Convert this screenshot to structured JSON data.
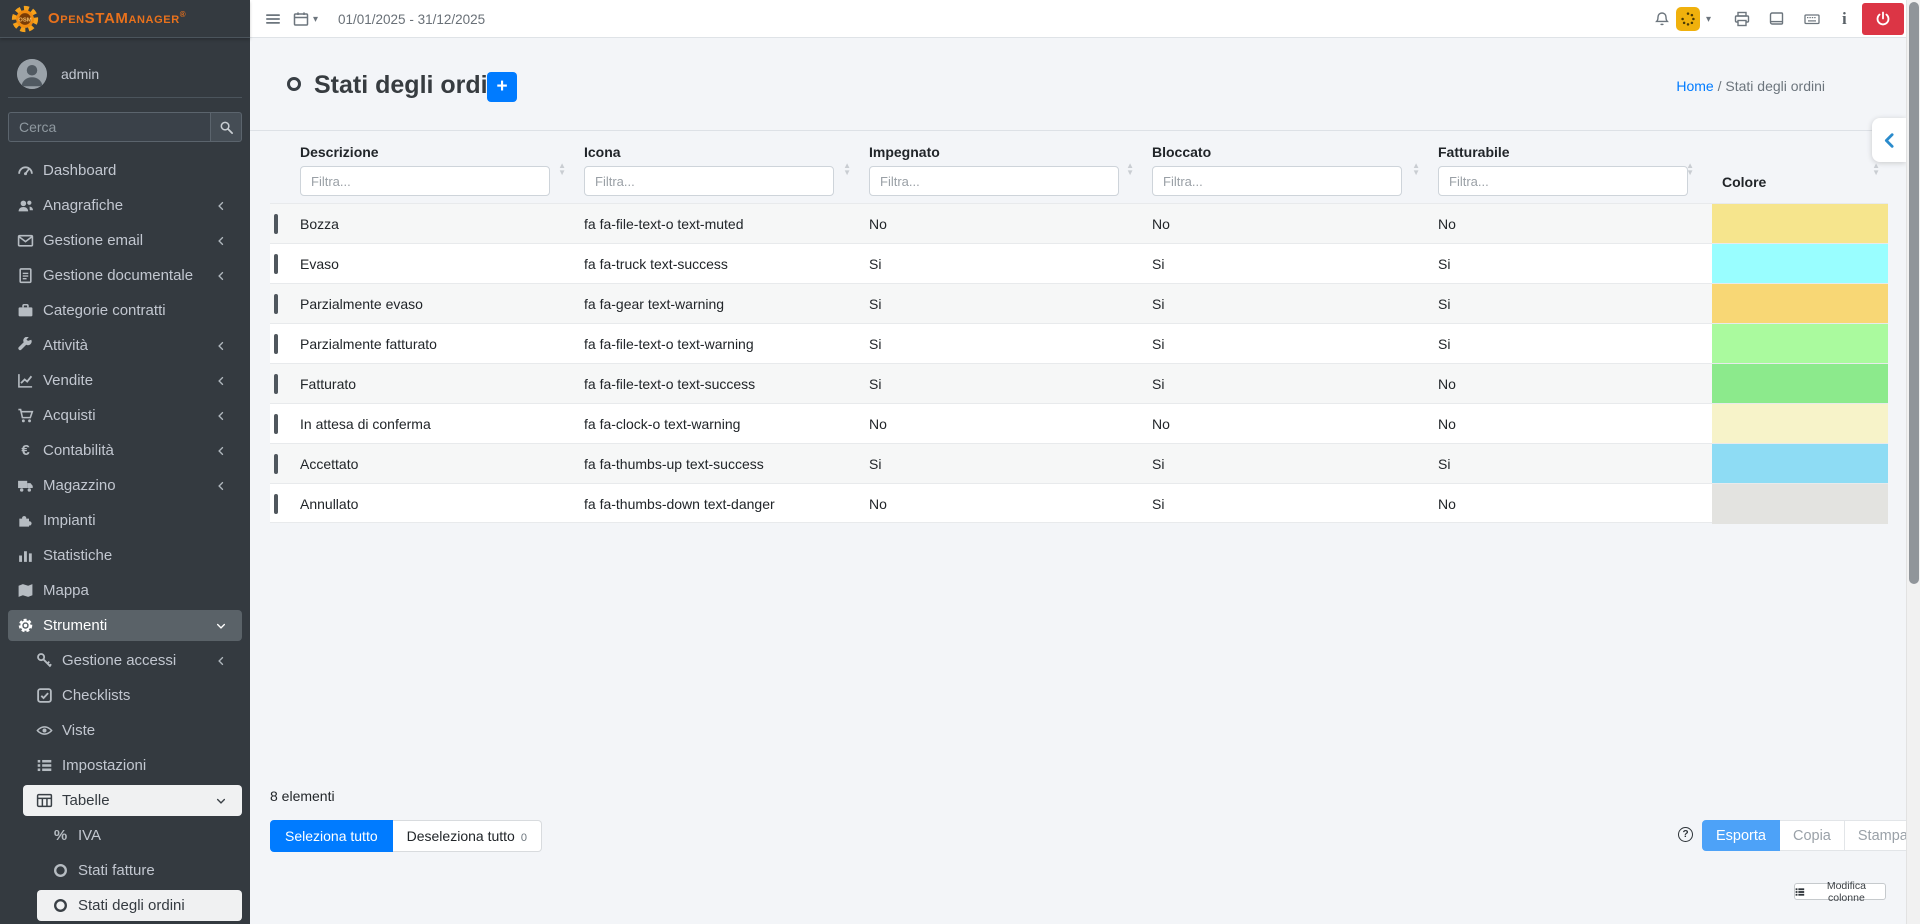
{
  "brand": {
    "name": "OpenSTAManager",
    "trademark": "®",
    "logo_icon": "osm-gear-icon"
  },
  "user": {
    "name": "admin"
  },
  "sidebar": {
    "search_placeholder": "Cerca",
    "search_icon": "magnifier",
    "items": [
      {
        "label": "Dashboard",
        "icon": "tachometer",
        "level": 0
      },
      {
        "label": "Anagrafiche",
        "icon": "users",
        "level": 0,
        "chevron": "left"
      },
      {
        "label": "Gestione email",
        "icon": "envelope",
        "level": 0,
        "chevron": "left"
      },
      {
        "label": "Gestione documentale",
        "icon": "file-text",
        "level": 0,
        "chevron": "left"
      },
      {
        "label": "Categorie contratti",
        "icon": "briefcase",
        "level": 0
      },
      {
        "label": "Attività",
        "icon": "wrench",
        "level": 0,
        "chevron": "left"
      },
      {
        "label": "Vendite",
        "icon": "chart-line",
        "level": 0,
        "chevron": "left"
      },
      {
        "label": "Acquisti",
        "icon": "cart",
        "level": 0,
        "chevron": "left"
      },
      {
        "label": "Contabilità",
        "icon": "euro",
        "level": 0,
        "chevron": "left"
      },
      {
        "label": "Magazzino",
        "icon": "truck",
        "level": 0,
        "chevron": "left"
      },
      {
        "label": "Impianti",
        "icon": "puzzle",
        "level": 0
      },
      {
        "label": "Statistiche",
        "icon": "bar-chart",
        "level": 0
      },
      {
        "label": "Mappa",
        "icon": "map",
        "level": 0
      },
      {
        "label": "Strumenti",
        "icon": "gear",
        "level": 0,
        "chevron": "down",
        "active": "gray"
      },
      {
        "label": "Gestione accessi",
        "icon": "key",
        "level": 1,
        "chevron": "left"
      },
      {
        "label": "Checklists",
        "icon": "check-square",
        "level": 1
      },
      {
        "label": "Viste",
        "icon": "eye",
        "level": 1
      },
      {
        "label": "Impostazioni",
        "icon": "list",
        "level": 1
      },
      {
        "label": "Tabelle",
        "icon": "table",
        "level": 1,
        "chevron": "down",
        "active": "light"
      },
      {
        "label": "IVA",
        "icon": "percent",
        "level": 2
      },
      {
        "label": "Stati fatture",
        "icon": "circle-o",
        "level": 2
      },
      {
        "label": "Stati degli ordini",
        "icon": "circle-o",
        "level": 2,
        "active": "light"
      }
    ]
  },
  "topbar": {
    "date_range": "01/01/2025 - 31/12/2025",
    "icons": [
      "hamburger",
      "calendar",
      "bell",
      "changelog-badge",
      "printer",
      "book",
      "keyboard",
      "info",
      "power"
    ],
    "badge_color": "#f0b10d",
    "power_color": "#dc3545"
  },
  "page": {
    "title": "Stati degli ordini",
    "title_icon": "circle-o",
    "add_button_label": "+",
    "breadcrumb": {
      "home": "Home",
      "separator": "/",
      "current": "Stati degli ordini"
    }
  },
  "table": {
    "columns": [
      {
        "label": "Descrizione",
        "filter_placeholder": "Filtra..."
      },
      {
        "label": "Icona",
        "filter_placeholder": "Filtra..."
      },
      {
        "label": "Impegnato",
        "filter_placeholder": "Filtra..."
      },
      {
        "label": "Bloccato",
        "filter_placeholder": "Filtra..."
      },
      {
        "label": "Fatturabile",
        "filter_placeholder": "Filtra..."
      },
      {
        "label": "Colore"
      }
    ],
    "rows": [
      {
        "descrizione": "Bozza",
        "icona": "fa fa-file-text-o text-muted",
        "impegnato": "No",
        "bloccato": "No",
        "fatturabile": "No",
        "colore": "#f6e58d"
      },
      {
        "descrizione": "Evaso",
        "icona": "fa fa-truck text-success",
        "impegnato": "Si",
        "bloccato": "Si",
        "fatturabile": "Si",
        "colore": "#99feff"
      },
      {
        "descrizione": "Parzialmente evaso",
        "icona": "fa fa-gear text-warning",
        "impegnato": "Si",
        "bloccato": "Si",
        "fatturabile": "Si",
        "colore": "#f8d775"
      },
      {
        "descrizione": "Parzialmente fatturato",
        "icona": "fa fa-file-text-o text-warning",
        "impegnato": "Si",
        "bloccato": "Si",
        "fatturabile": "Si",
        "colore": "#aafa9e"
      },
      {
        "descrizione": "Fatturato",
        "icona": "fa fa-file-text-o text-success",
        "impegnato": "Si",
        "bloccato": "Si",
        "fatturabile": "No",
        "colore": "#8cea8c"
      },
      {
        "descrizione": "In attesa di conferma",
        "icona": "fa fa-clock-o text-warning",
        "impegnato": "No",
        "bloccato": "No",
        "fatturabile": "No",
        "colore": "#f7f3c9"
      },
      {
        "descrizione": "Accettato",
        "icona": "fa fa-thumbs-up text-success",
        "impegnato": "Si",
        "bloccato": "Si",
        "fatturabile": "Si",
        "colore": "#8edcf4"
      },
      {
        "descrizione": "Annullato",
        "icona": "fa fa-thumbs-down text-danger",
        "impegnato": "No",
        "bloccato": "Si",
        "fatturabile": "No",
        "colore": "#e3e3e0"
      }
    ]
  },
  "footer": {
    "count_text": "8 elementi",
    "select_all_label": "Seleziona tutto",
    "deselect_all_label": "Deseleziona tutto",
    "deselect_count": "0",
    "export_label": "Esporta",
    "copy_label": "Copia",
    "print_label": "Stampa",
    "edit_columns_label": "Modifica colonne",
    "help_icon": "question-circle"
  },
  "colors": {
    "accent": "#007bff",
    "danger": "#dc3545",
    "sidebar_bg": "#343a40",
    "export_blue": "#4da2f8"
  }
}
